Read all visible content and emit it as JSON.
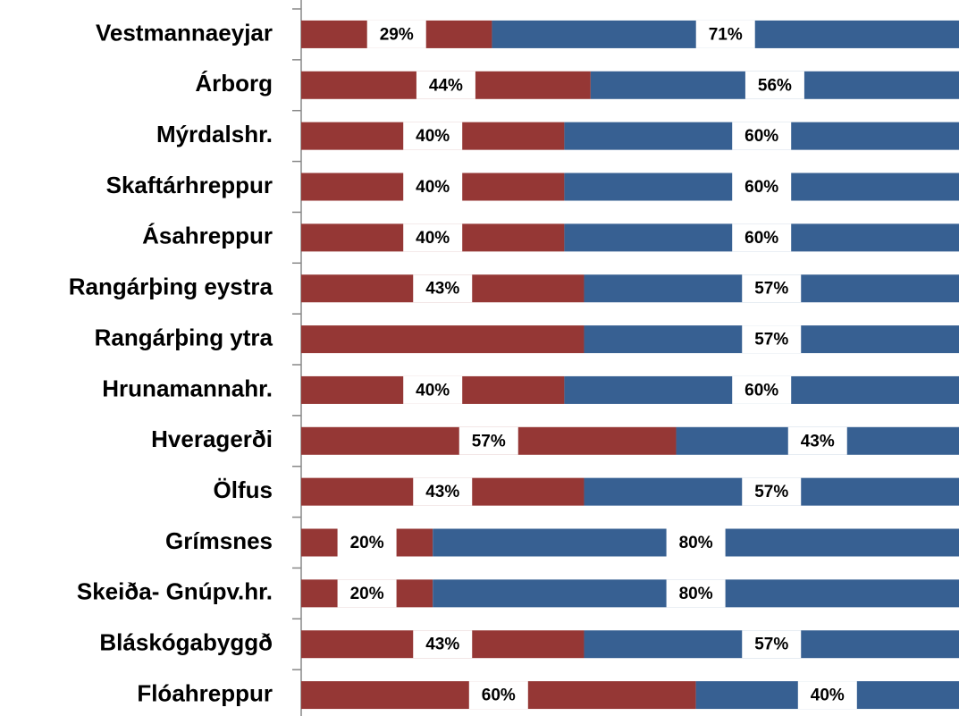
{
  "chart_data": {
    "type": "stacked_bar_horizontal",
    "categories": [
      "Vestmannaeyjar",
      "Árborg",
      "Mýrdalshr.",
      "Skaftárhreppur",
      "Ásahreppur",
      "Rangárþing eystra",
      "Rangárþing ytra",
      "Hrunamannahr.",
      "Hveragerði",
      "Ölfus",
      "Grímsnes",
      "Skeiða- Gnúpv.hr.",
      "Bláskógabyggð",
      "Flóahreppur"
    ],
    "series": [
      {
        "color": "#953735",
        "values": [
          29,
          44,
          40,
          40,
          40,
          43,
          43,
          40,
          57,
          43,
          20,
          20,
          43,
          60
        ],
        "value_labels": [
          "29%",
          "44%",
          "40%",
          "40%",
          "40%",
          "43%",
          null,
          "40%",
          "57%",
          "43%",
          "20%",
          "20%",
          "43%",
          "60%"
        ]
      },
      {
        "color": "#376092",
        "values": [
          71,
          56,
          60,
          60,
          60,
          57,
          57,
          60,
          43,
          57,
          80,
          80,
          57,
          40
        ],
        "value_labels": [
          "71%",
          "56%",
          "60%",
          "60%",
          "60%",
          "57%",
          "57%",
          "60%",
          "43%",
          "57%",
          "80%",
          "80%",
          "57%",
          "40%"
        ]
      }
    ],
    "xlim": [
      0,
      100
    ]
  }
}
